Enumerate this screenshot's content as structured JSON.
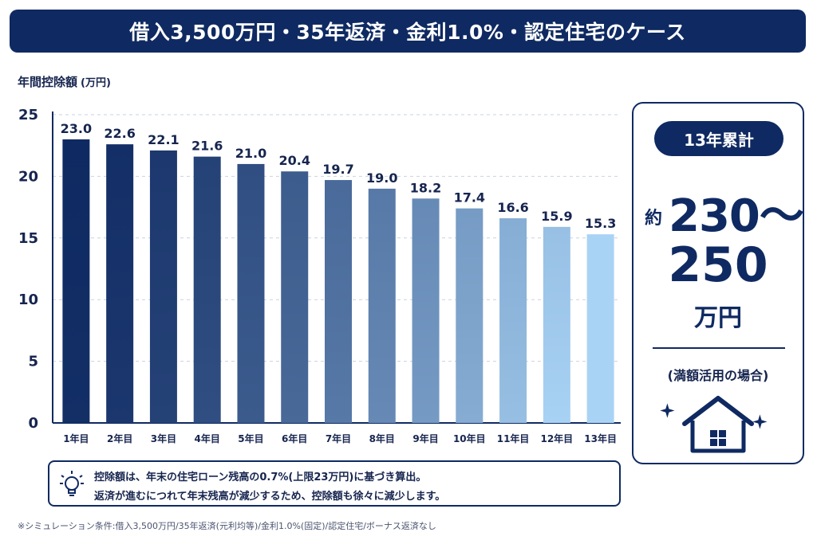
{
  "title": "借入3,500万円・35年返済・金利1.0%・認定住宅のケース",
  "y_axis_title": "年間控除額",
  "y_axis_unit": "(万円)",
  "chart_data": {
    "type": "bar",
    "categories": [
      "1年目",
      "2年目",
      "3年目",
      "4年目",
      "5年目",
      "6年目",
      "7年目",
      "8年目",
      "9年目",
      "10年目",
      "11年目",
      "12年目",
      "13年目"
    ],
    "values": [
      23.0,
      22.6,
      22.1,
      21.6,
      21.0,
      20.4,
      19.7,
      19.0,
      18.2,
      17.4,
      16.6,
      15.9,
      15.3
    ],
    "value_labels": [
      "23.0",
      "22.6",
      "22.1",
      "21.6",
      "21.0",
      "20.4",
      "19.7",
      "19.0",
      "18.2",
      "17.4",
      "16.6",
      "15.9",
      "15.3"
    ],
    "ylim": [
      0,
      25
    ],
    "yticks": [
      0,
      5,
      10,
      15,
      20,
      25
    ],
    "grid": true,
    "color_start": "#0f2a62",
    "color_end": "#a9d3f5"
  },
  "summary": {
    "badge": "13年累計",
    "prefix": "約",
    "range_line1": "230〜",
    "range_line2": "250",
    "unit": "万円",
    "note": "(満額活用の場合)",
    "icon": "house-icon"
  },
  "note_box": {
    "icon": "lightbulb-icon",
    "line1": "控除額は、年末の住宅ローン残高の0.7%(上限23万円)に基づき算出。",
    "line2": "返済が進むにつれて年末残高が減少するため、控除額も徐々に減少します。"
  },
  "footnote": "※シミュレーション条件:借入3,500万円/35年返済(元利均等)/金利1.0%(固定)/認定住宅/ボーナス返済なし"
}
